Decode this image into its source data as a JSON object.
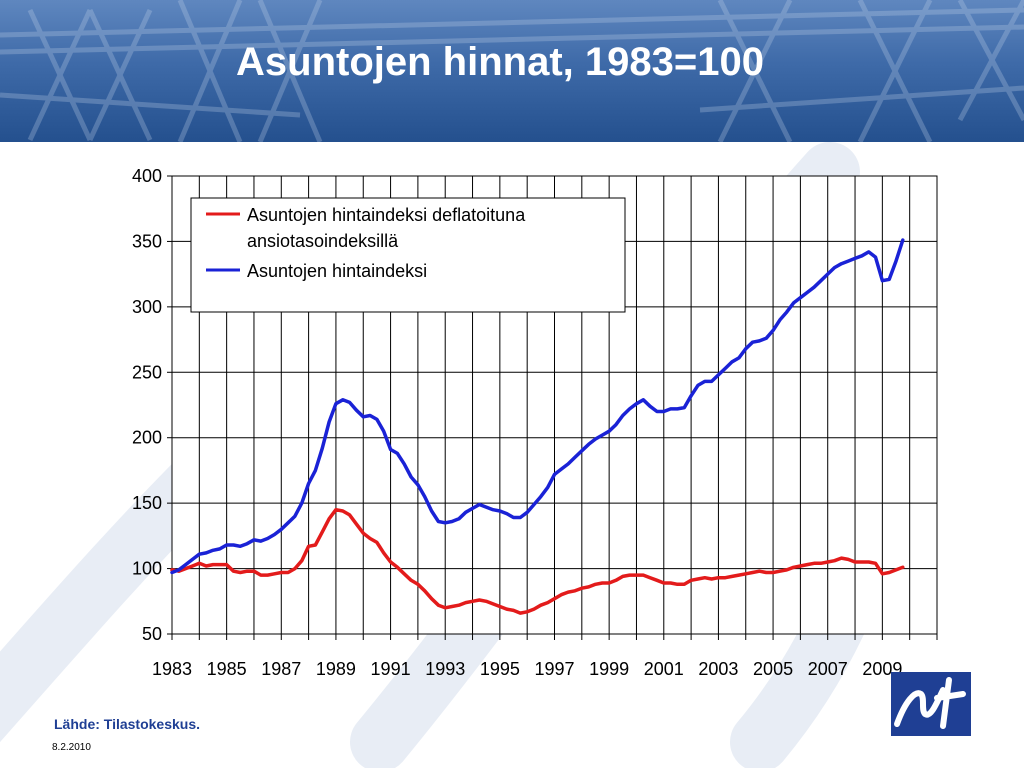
{
  "slide": {
    "title": "Asuntojen hinnat, 1983=100",
    "source": "Lähde: Tilastokeskus.",
    "date": "8.2.2010"
  },
  "colors": {
    "header_dark": "#24508e",
    "header_light": "#5f87bf",
    "series_deflated": "#e31b1b",
    "series_nominal": "#1a22d6",
    "source_text": "#1f3f94",
    "logo_bg": "#1f3f94"
  },
  "icons": {
    "logo": "statistics-finland-logo"
  },
  "chart_data": {
    "type": "line",
    "title": "",
    "xlabel": "",
    "ylabel": "",
    "xlim": [
      1983,
      2011
    ],
    "ylim": [
      50,
      400
    ],
    "x_ticks": [
      1983,
      1985,
      1987,
      1989,
      1991,
      1993,
      1995,
      1997,
      1999,
      2001,
      2003,
      2005,
      2007,
      2009
    ],
    "y_ticks": [
      50,
      100,
      150,
      200,
      250,
      300,
      350,
      400
    ],
    "grid": true,
    "legend_position": "top-center",
    "legend": [
      "Asuntojen hintaindeksi deflatoituna ansiotasoindeksillä",
      "Asuntojen hintaindeksi"
    ],
    "series": [
      {
        "name": "Asuntojen hintaindeksi deflatoituna ansiotasoindeksillä",
        "color": "#e31b1b",
        "x": [
          1983,
          1983.25,
          1983.5,
          1983.75,
          1984,
          1984.25,
          1984.5,
          1984.75,
          1985,
          1985.25,
          1985.5,
          1985.75,
          1986,
          1986.25,
          1986.5,
          1986.75,
          1987,
          1987.25,
          1987.5,
          1987.75,
          1988,
          1988.25,
          1988.5,
          1988.75,
          1989,
          1989.25,
          1989.5,
          1989.75,
          1990,
          1990.25,
          1990.5,
          1990.75,
          1991,
          1991.25,
          1991.5,
          1991.75,
          1992,
          1992.25,
          1992.5,
          1992.75,
          1993,
          1993.25,
          1993.5,
          1993.75,
          1994,
          1994.25,
          1994.5,
          1994.75,
          1995,
          1995.25,
          1995.5,
          1995.75,
          1996,
          1996.25,
          1996.5,
          1996.75,
          1997,
          1997.25,
          1997.5,
          1997.75,
          1998,
          1998.25,
          1998.5,
          1998.75,
          1999,
          1999.25,
          1999.5,
          1999.75,
          2000,
          2000.25,
          2000.5,
          2000.75,
          2001,
          2001.25,
          2001.5,
          2001.75,
          2002,
          2002.25,
          2002.5,
          2002.75,
          2003,
          2003.25,
          2003.5,
          2003.75,
          2004,
          2004.25,
          2004.5,
          2004.75,
          2005,
          2005.25,
          2005.5,
          2005.75,
          2006,
          2006.25,
          2006.5,
          2006.75,
          2007,
          2007.25,
          2007.5,
          2007.75,
          2008,
          2008.25,
          2008.5,
          2008.75,
          2009,
          2009.25,
          2009.5,
          2009.75
        ],
        "values": [
          99,
          98,
          100,
          102,
          104,
          102,
          103,
          103,
          103,
          98,
          97,
          98,
          98,
          95,
          95,
          96,
          97,
          97,
          100,
          106,
          117,
          118,
          128,
          138,
          145,
          144,
          141,
          134,
          127,
          123,
          120,
          112,
          105,
          101,
          96,
          91,
          88,
          83,
          77,
          72,
          70,
          71,
          72,
          74,
          75,
          76,
          75,
          73,
          71,
          69,
          68,
          66,
          67,
          69,
          72,
          74,
          77,
          80,
          82,
          83,
          85,
          86,
          88,
          89,
          89,
          91,
          94,
          95,
          95,
          95,
          93,
          91,
          89,
          89,
          88,
          88,
          91,
          92,
          93,
          92,
          93,
          93,
          94,
          95,
          96,
          97,
          98,
          97,
          97,
          98,
          99,
          101,
          102,
          103,
          104,
          104,
          105,
          106,
          108,
          107,
          105,
          105,
          105,
          104,
          96,
          97,
          99,
          101
        ]
      },
      {
        "name": "Asuntojen hintaindeksi",
        "color": "#1a22d6",
        "x": [
          1983,
          1983.25,
          1983.5,
          1983.75,
          1984,
          1984.25,
          1984.5,
          1984.75,
          1985,
          1985.25,
          1985.5,
          1985.75,
          1986,
          1986.25,
          1986.5,
          1986.75,
          1987,
          1987.25,
          1987.5,
          1987.75,
          1988,
          1988.25,
          1988.5,
          1988.75,
          1989,
          1989.25,
          1989.5,
          1989.75,
          1990,
          1990.25,
          1990.5,
          1990.75,
          1991,
          1991.25,
          1991.5,
          1991.75,
          1992,
          1992.25,
          1992.5,
          1992.75,
          1993,
          1993.25,
          1993.5,
          1993.75,
          1994,
          1994.25,
          1994.5,
          1994.75,
          1995,
          1995.25,
          1995.5,
          1995.75,
          1996,
          1996.25,
          1996.5,
          1996.75,
          1997,
          1997.25,
          1997.5,
          1997.75,
          1998,
          1998.25,
          1998.5,
          1998.75,
          1999,
          1999.25,
          1999.5,
          1999.75,
          2000,
          2000.25,
          2000.5,
          2000.75,
          2001,
          2001.25,
          2001.5,
          2001.75,
          2002,
          2002.25,
          2002.5,
          2002.75,
          2003,
          2003.25,
          2003.5,
          2003.75,
          2004,
          2004.25,
          2004.5,
          2004.75,
          2005,
          2005.25,
          2005.5,
          2005.75,
          2006,
          2006.25,
          2006.5,
          2006.75,
          2007,
          2007.25,
          2007.5,
          2007.75,
          2008,
          2008.25,
          2008.5,
          2008.75,
          2009,
          2009.25,
          2009.5,
          2009.75
        ],
        "values": [
          97,
          99,
          103,
          107,
          111,
          112,
          114,
          115,
          118,
          118,
          117,
          119,
          122,
          121,
          123,
          126,
          130,
          135,
          140,
          150,
          165,
          175,
          192,
          212,
          226,
          229,
          227,
          221,
          216,
          217,
          214,
          205,
          191,
          188,
          180,
          170,
          164,
          155,
          144,
          136,
          135,
          136,
          138,
          143,
          146,
          149,
          147,
          145,
          144,
          142,
          139,
          139,
          143,
          149,
          155,
          162,
          172,
          176,
          180,
          185,
          190,
          195,
          199,
          202,
          205,
          210,
          217,
          222,
          226,
          229,
          224,
          220,
          220,
          222,
          222,
          223,
          232,
          240,
          243,
          243,
          248,
          253,
          258,
          261,
          268,
          273,
          274,
          276,
          282,
          290,
          296,
          303,
          307,
          311,
          315,
          320,
          325,
          330,
          333,
          335,
          337,
          339,
          342,
          338,
          320,
          321,
          335,
          351
        ]
      }
    ]
  }
}
